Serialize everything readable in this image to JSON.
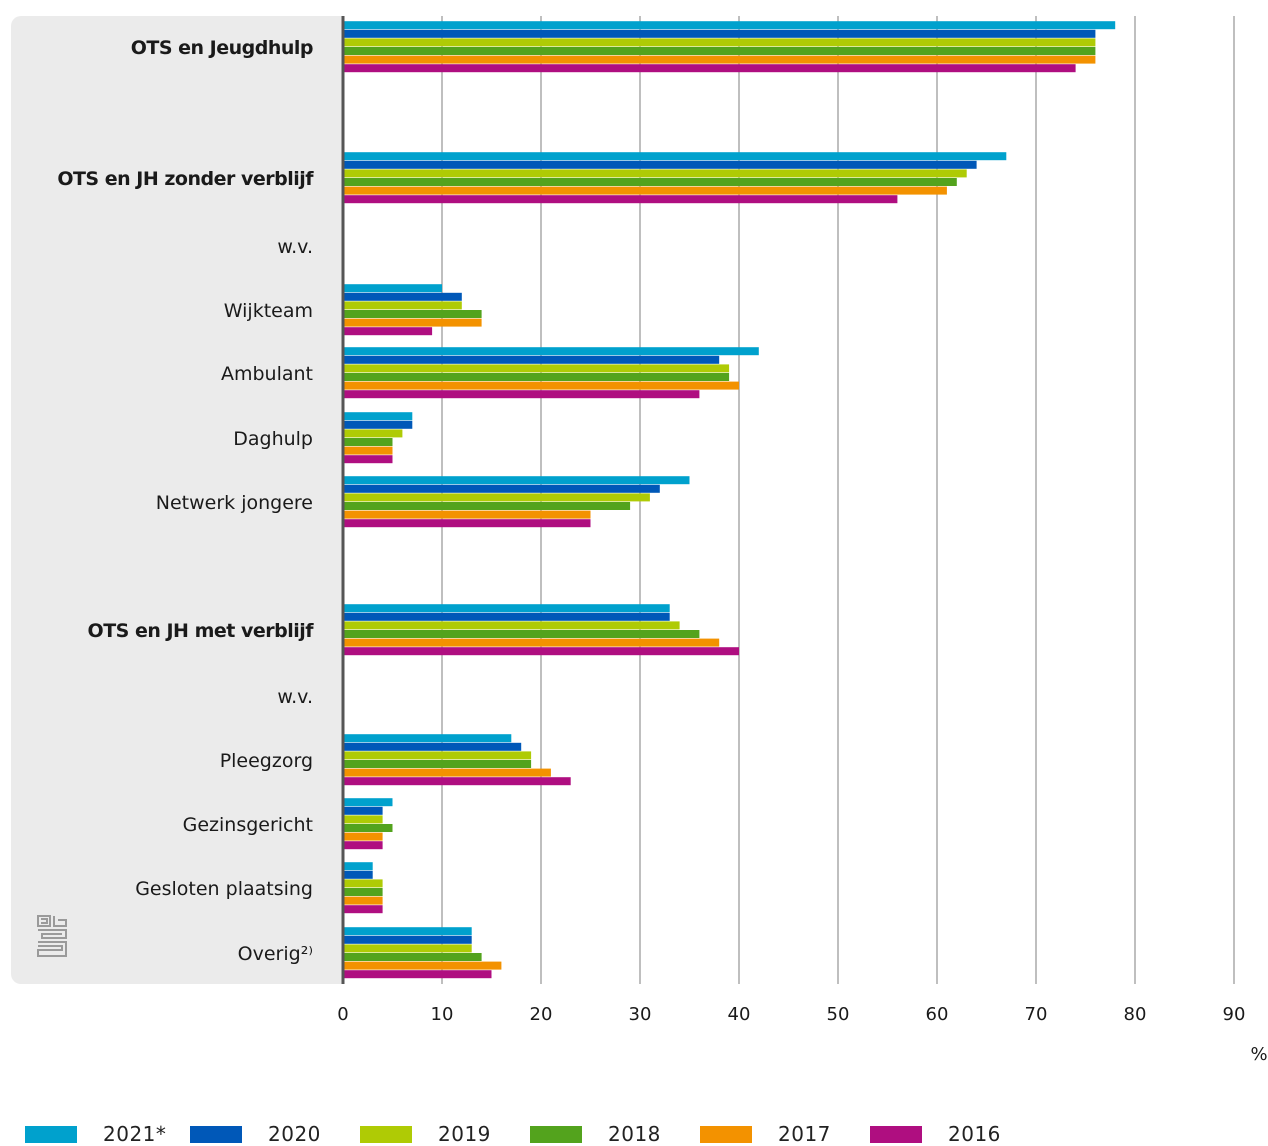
{
  "chart_data": {
    "type": "bar",
    "orientation": "horizontal",
    "unit_label": "%",
    "xlim": [
      0,
      90
    ],
    "x_ticks": [
      "0",
      "10",
      "20",
      "30",
      "40",
      "50",
      "60",
      "70",
      "80",
      "90"
    ],
    "grid": true,
    "legend_position": "bottom",
    "categories": [
      {
        "label": "OTS en Jeugdhulp",
        "bold": true
      },
      {
        "label": "OTS en JH zonder verblijf",
        "bold": true
      },
      {
        "label": "w.v.",
        "bold": false
      },
      {
        "label": "Wijkteam",
        "bold": false
      },
      {
        "label": "Ambulant",
        "bold": false
      },
      {
        "label": "Daghulp",
        "bold": false
      },
      {
        "label": "Netwerk jongere",
        "bold": false
      },
      {
        "label": "OTS en JH met verblijf",
        "bold": true
      },
      {
        "label": "w.v.",
        "bold": false
      },
      {
        "label": "Pleegzorg",
        "bold": false
      },
      {
        "label": "Gezinsgericht",
        "bold": false
      },
      {
        "label": "Gesloten plaatsing",
        "bold": false
      },
      {
        "label": "Overig²⁾",
        "bold": false
      }
    ],
    "series": [
      {
        "name": "2021*",
        "color": "#00a1cd",
        "values": [
          78,
          67,
          null,
          10,
          42,
          7,
          35,
          33,
          null,
          17,
          5,
          3,
          13
        ]
      },
      {
        "name": "2020",
        "color": "#0058b8",
        "values": [
          76,
          64,
          null,
          12,
          38,
          7,
          32,
          33,
          null,
          18,
          4,
          3,
          13
        ]
      },
      {
        "name": "2019",
        "color": "#afcb05",
        "values": [
          76,
          63,
          null,
          12,
          39,
          6,
          31,
          34,
          null,
          19,
          4,
          4,
          13
        ]
      },
      {
        "name": "2018",
        "color": "#53a31d",
        "values": [
          76,
          62,
          null,
          14,
          39,
          5,
          29,
          36,
          null,
          19,
          5,
          4,
          14
        ]
      },
      {
        "name": "2017",
        "color": "#f39200",
        "values": [
          76,
          61,
          null,
          14,
          40,
          5,
          25,
          38,
          null,
          21,
          4,
          4,
          16
        ]
      },
      {
        "name": "2016",
        "color": "#af0e80",
        "values": [
          74,
          56,
          null,
          9,
          36,
          5,
          25,
          40,
          null,
          23,
          4,
          4,
          15
        ]
      }
    ]
  },
  "colors": {
    "panel_background": "#ebebeb",
    "grid": "#7f7f7f",
    "axis": "#555555"
  }
}
